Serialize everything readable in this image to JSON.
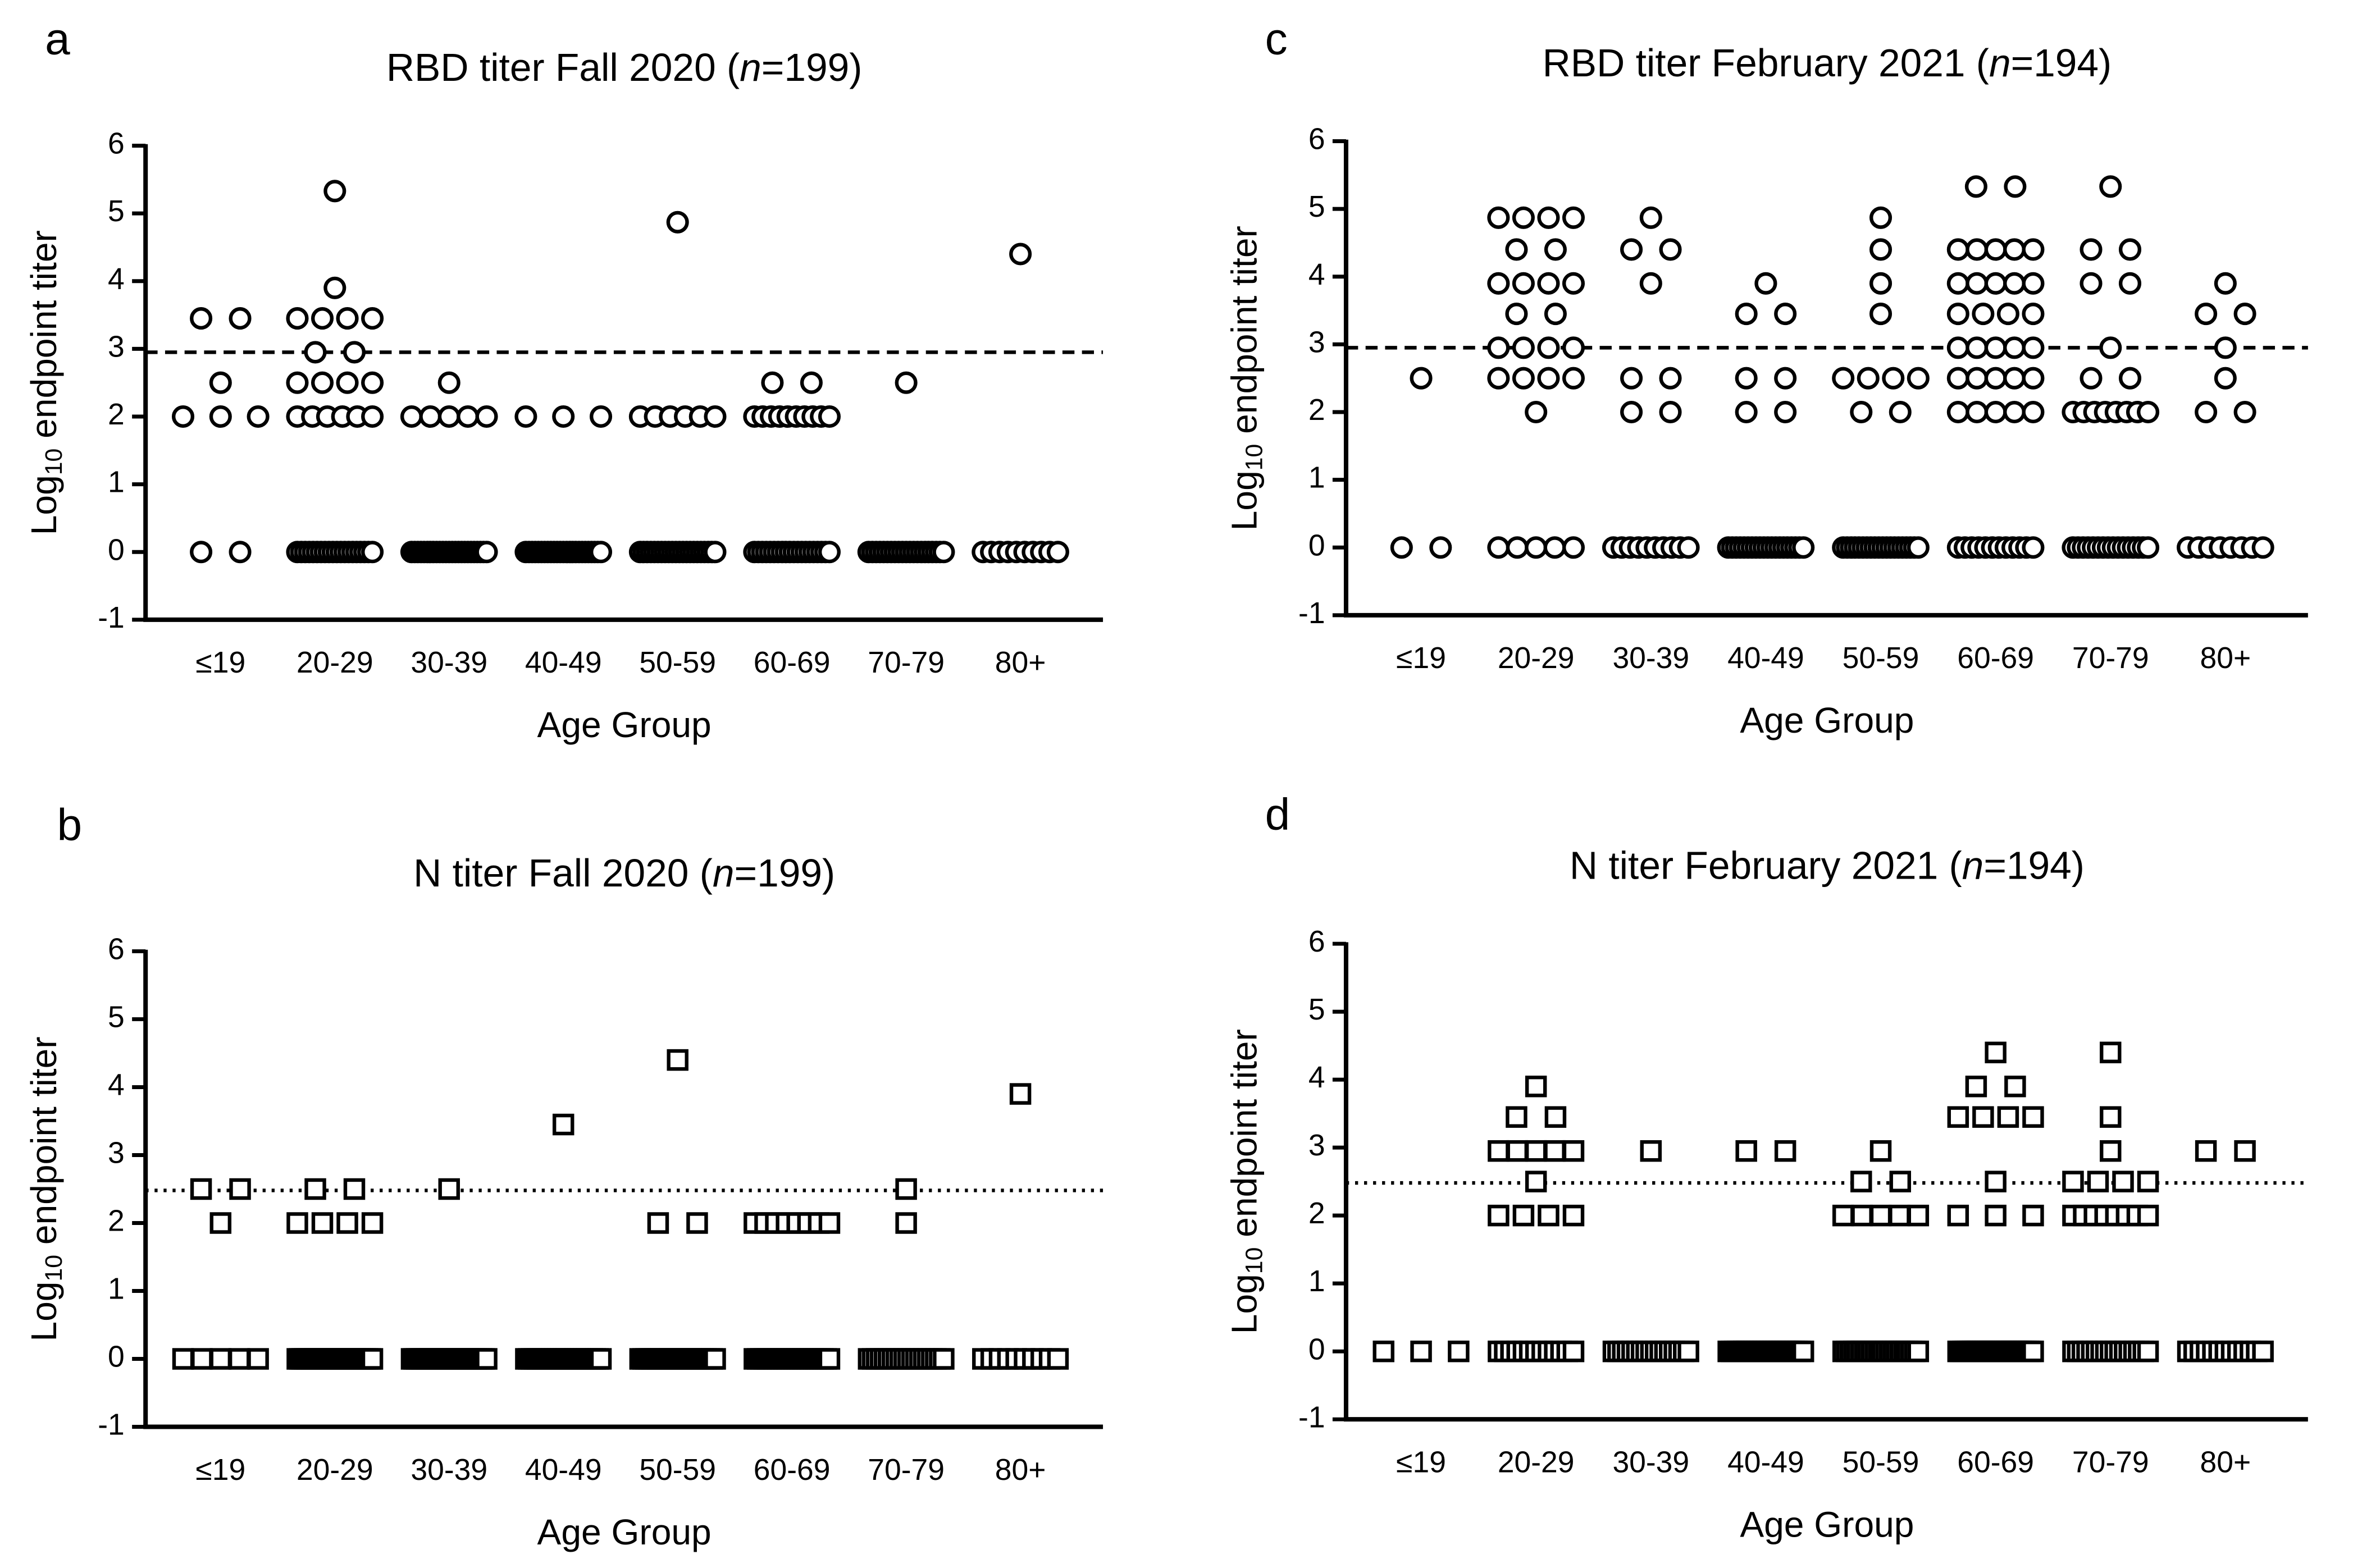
{
  "chart_data": [
    {
      "type": "strip",
      "panel_label": "a",
      "title": [
        "RBD titer Fall 2020 (",
        "n",
        "=199)"
      ],
      "y_label": [
        "Log",
        "10",
        " endpoint titer"
      ],
      "x_label": "Age Group",
      "marker": "circle",
      "color": "#000000",
      "categories": [
        "≤19",
        "20-29",
        "30-39",
        "40-49",
        "50-59",
        "60-69",
        "70-79",
        "80+"
      ],
      "ylim": [
        -1,
        6
      ],
      "yticks": [
        -1,
        0,
        1,
        2,
        3,
        4,
        5,
        6
      ],
      "threshold": 2.95,
      "threshold_style": "dashed",
      "values": [
        [
          3.45,
          3.45,
          2.5,
          2,
          2,
          2,
          0,
          0
        ],
        [
          5.33,
          3.9,
          3.45,
          3.45,
          3.45,
          3.45,
          2.95,
          2.95,
          2.5,
          2.5,
          2.5,
          2.5,
          2,
          2,
          2,
          2,
          2,
          2,
          0,
          0,
          0,
          0,
          0,
          0,
          0,
          0,
          0,
          0,
          0,
          0,
          0,
          0,
          0,
          0,
          0,
          0,
          0,
          0
        ],
        [
          2.5,
          2,
          2,
          2,
          2,
          2,
          0,
          0,
          0,
          0,
          0,
          0,
          0,
          0,
          0,
          0,
          0,
          0,
          0,
          0,
          0,
          0,
          0,
          0,
          0,
          0,
          0,
          0,
          0,
          0,
          0
        ],
        [
          2,
          2,
          2,
          0,
          0,
          0,
          0,
          0,
          0,
          0,
          0,
          0,
          0,
          0,
          0,
          0,
          0,
          0,
          0,
          0,
          0,
          0,
          0,
          0,
          0,
          0,
          0,
          0
        ],
        [
          4.87,
          2,
          2,
          2,
          2,
          2,
          2,
          0,
          0,
          0,
          0,
          0,
          0,
          0,
          0,
          0,
          0,
          0,
          0,
          0,
          0,
          0,
          0,
          0,
          0,
          0,
          0,
          0,
          0
        ],
        [
          2.5,
          2.5,
          2,
          2,
          2,
          2,
          2,
          2,
          2,
          2,
          2,
          2,
          0,
          0,
          0,
          0,
          0,
          0,
          0,
          0,
          0,
          0,
          0,
          0,
          0,
          0,
          0,
          0,
          0,
          0,
          0,
          0
        ],
        [
          2.5,
          0,
          0,
          0,
          0,
          0,
          0,
          0,
          0,
          0,
          0,
          0,
          0,
          0,
          0,
          0,
          0,
          0,
          0,
          0,
          0,
          0
        ],
        [
          4.4,
          0,
          0,
          0,
          0,
          0,
          0,
          0,
          0,
          0,
          0
        ]
      ]
    },
    {
      "type": "strip",
      "panel_label": "b",
      "title": [
        "N titer Fall 2020 (",
        "n",
        "=199)"
      ],
      "y_label": [
        "Log",
        "10",
        " endpoint titer"
      ],
      "x_label": "Age Group",
      "marker": "square",
      "color": "#000000",
      "categories": [
        "≤19",
        "20-29",
        "30-39",
        "40-49",
        "50-59",
        "60-69",
        "70-79",
        "80+"
      ],
      "ylim": [
        -1,
        6
      ],
      "yticks": [
        -1,
        0,
        1,
        2,
        3,
        4,
        5,
        6
      ],
      "threshold": 2.48,
      "threshold_style": "dotted",
      "values": [
        [
          2.5,
          2.5,
          2,
          0,
          0,
          0,
          0,
          0
        ],
        [
          2.5,
          2.5,
          2,
          2,
          2,
          2,
          0,
          0,
          0,
          0,
          0,
          0,
          0,
          0,
          0,
          0,
          0,
          0,
          0,
          0,
          0,
          0,
          0,
          0,
          0,
          0,
          0,
          0,
          0,
          0,
          0,
          0,
          0,
          0,
          0,
          0,
          0,
          0
        ],
        [
          2.5,
          0,
          0,
          0,
          0,
          0,
          0,
          0,
          0,
          0,
          0,
          0,
          0,
          0,
          0,
          0,
          0,
          0,
          0,
          0,
          0,
          0,
          0,
          0,
          0,
          0,
          0,
          0,
          0,
          0,
          0
        ],
        [
          3.45,
          0,
          0,
          0,
          0,
          0,
          0,
          0,
          0,
          0,
          0,
          0,
          0,
          0,
          0,
          0,
          0,
          0,
          0,
          0,
          0,
          0,
          0,
          0,
          0,
          0,
          0,
          0
        ],
        [
          4.4,
          2,
          2,
          0,
          0,
          0,
          0,
          0,
          0,
          0,
          0,
          0,
          0,
          0,
          0,
          0,
          0,
          0,
          0,
          0,
          0,
          0,
          0,
          0,
          0,
          0,
          0,
          0,
          0
        ],
        [
          2,
          2,
          2,
          2,
          2,
          2,
          2,
          2,
          0,
          0,
          0,
          0,
          0,
          0,
          0,
          0,
          0,
          0,
          0,
          0,
          0,
          0,
          0,
          0,
          0,
          0,
          0,
          0,
          0,
          0,
          0,
          0
        ],
        [
          2.5,
          2,
          0,
          0,
          0,
          0,
          0,
          0,
          0,
          0,
          0,
          0,
          0,
          0,
          0,
          0,
          0,
          0,
          0,
          0,
          0,
          0
        ],
        [
          3.9,
          0,
          0,
          0,
          0,
          0,
          0,
          0,
          0,
          0,
          0
        ]
      ]
    },
    {
      "type": "strip",
      "panel_label": "c",
      "title": [
        "RBD titer February 2021 (",
        "n",
        "=194)"
      ],
      "y_label": [
        "Log",
        "10",
        " endpoint titer"
      ],
      "x_label": "Age Group",
      "marker": "circle",
      "color": "#000000",
      "categories": [
        "≤19",
        "20-29",
        "30-39",
        "40-49",
        "50-59",
        "60-69",
        "70-79",
        "80+"
      ],
      "ylim": [
        -1,
        6
      ],
      "yticks": [
        -1,
        0,
        1,
        2,
        3,
        4,
        5,
        6
      ],
      "threshold": 2.95,
      "threshold_style": "dashed",
      "values": [
        [
          2.5,
          0,
          0
        ],
        [
          4.87,
          4.87,
          4.87,
          4.87,
          4.4,
          4.4,
          3.9,
          3.9,
          3.9,
          3.9,
          3.45,
          3.45,
          2.95,
          2.95,
          2.95,
          2.95,
          2.5,
          2.5,
          2.5,
          2.5,
          2,
          0,
          0,
          0,
          0,
          0
        ],
        [
          4.87,
          4.4,
          4.4,
          3.9,
          2.5,
          2.5,
          2,
          2,
          0,
          0,
          0,
          0,
          0,
          0,
          0,
          0,
          0,
          0
        ],
        [
          3.9,
          3.45,
          3.45,
          2.5,
          2.5,
          2,
          2,
          0,
          0,
          0,
          0,
          0,
          0,
          0,
          0,
          0,
          0,
          0,
          0,
          0,
          0,
          0,
          0,
          0,
          0,
          0,
          0
        ],
        [
          4.87,
          4.4,
          3.9,
          3.45,
          2.5,
          2.5,
          2.5,
          2.5,
          2,
          2,
          0,
          0,
          0,
          0,
          0,
          0,
          0,
          0,
          0,
          0,
          0,
          0,
          0,
          0,
          0,
          0,
          0,
          0,
          0,
          0
        ],
        [
          5.33,
          5.33,
          4.4,
          4.4,
          4.4,
          4.4,
          4.4,
          3.9,
          3.9,
          3.9,
          3.9,
          3.9,
          3.45,
          3.45,
          3.45,
          3.45,
          2.95,
          2.95,
          2.95,
          2.95,
          2.95,
          2.5,
          2.5,
          2.5,
          2.5,
          2.5,
          2,
          2,
          2,
          2,
          2,
          0,
          0,
          0,
          0,
          0,
          0,
          0,
          0,
          0,
          0,
          0,
          0
        ],
        [
          5.33,
          4.4,
          4.4,
          3.9,
          3.9,
          2.95,
          2.5,
          2.5,
          2,
          2,
          2,
          2,
          2,
          2,
          2,
          2,
          0,
          0,
          0,
          0,
          0,
          0,
          0,
          0,
          0,
          0,
          0,
          0,
          0,
          0,
          0,
          0
        ],
        [
          3.9,
          3.45,
          3.45,
          2.95,
          2.5,
          2,
          2,
          0,
          0,
          0,
          0,
          0,
          0,
          0,
          0
        ]
      ]
    },
    {
      "type": "strip",
      "panel_label": "d",
      "title": [
        "N titer February 2021 (",
        "n",
        "=194)"
      ],
      "y_label": [
        "Log",
        "10",
        " endpoint titer"
      ],
      "x_label": "Age Group",
      "marker": "square",
      "color": "#000000",
      "categories": [
        "≤19",
        "20-29",
        "30-39",
        "40-49",
        "50-59",
        "60-69",
        "70-79",
        "80+"
      ],
      "ylim": [
        -1,
        6
      ],
      "yticks": [
        -1,
        0,
        1,
        2,
        3,
        4,
        5,
        6
      ],
      "threshold": 2.48,
      "threshold_style": "dotted",
      "values": [
        [
          0,
          0,
          0
        ],
        [
          3.9,
          3.45,
          3.45,
          2.95,
          2.95,
          2.95,
          2.95,
          2.95,
          2.5,
          2,
          2,
          2,
          2,
          0,
          0,
          0,
          0,
          0,
          0,
          0,
          0,
          0,
          0,
          0,
          0,
          0
        ],
        [
          2.95,
          0,
          0,
          0,
          0,
          0,
          0,
          0,
          0,
          0,
          0,
          0,
          0,
          0,
          0,
          0,
          0,
          0
        ],
        [
          2.95,
          2.95,
          0,
          0,
          0,
          0,
          0,
          0,
          0,
          0,
          0,
          0,
          0,
          0,
          0,
          0,
          0,
          0,
          0,
          0,
          0,
          0,
          0,
          0,
          0,
          0,
          0
        ],
        [
          2.95,
          2.5,
          2.5,
          2,
          2,
          2,
          2,
          2,
          0,
          0,
          0,
          0,
          0,
          0,
          0,
          0,
          0,
          0,
          0,
          0,
          0,
          0,
          0,
          0,
          0,
          0,
          0,
          0,
          0,
          0
        ],
        [
          4.4,
          3.9,
          3.9,
          3.45,
          3.45,
          3.45,
          3.45,
          2.5,
          2,
          2,
          2,
          0,
          0,
          0,
          0,
          0,
          0,
          0,
          0,
          0,
          0,
          0,
          0,
          0,
          0,
          0,
          0,
          0,
          0,
          0,
          0,
          0,
          0,
          0,
          0,
          0,
          0,
          0,
          0,
          0,
          0,
          0,
          0
        ],
        [
          4.4,
          3.45,
          2.95,
          2.5,
          2.5,
          2.5,
          2.5,
          2,
          2,
          2,
          2,
          2,
          2,
          2,
          2,
          0,
          0,
          0,
          0,
          0,
          0,
          0,
          0,
          0,
          0,
          0,
          0,
          0,
          0,
          0,
          0,
          0
        ],
        [
          2.95,
          2.95,
          0,
          0,
          0,
          0,
          0,
          0,
          0,
          0,
          0,
          0,
          0,
          0,
          0
        ]
      ]
    }
  ]
}
